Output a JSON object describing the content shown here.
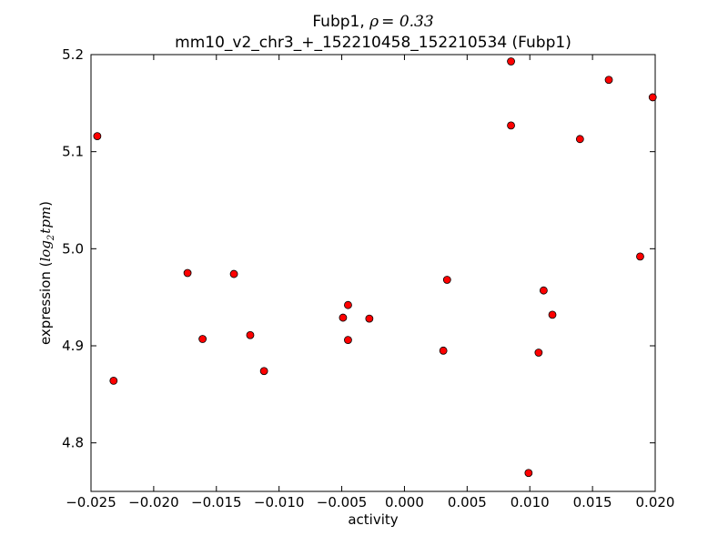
{
  "chart_data": {
    "type": "scatter",
    "title": {
      "gene": "Fubp1",
      "rho_symbol": "ρ",
      "rho_value": "= 0.33",
      "subtitle": "mm10_v2_chr3_+_152210458_152210534 (Fubp1)"
    },
    "xlabel": "activity",
    "ylabel": {
      "prefix": "expression (",
      "log": "log",
      "sub": "2",
      "unit": "tpm",
      "suffix": ")"
    },
    "xlim": [
      -0.025,
      0.02
    ],
    "ylim": [
      4.75,
      5.2
    ],
    "xticks": [
      {
        "value": -0.025,
        "label": "−0.025"
      },
      {
        "value": -0.02,
        "label": "−0.020"
      },
      {
        "value": -0.015,
        "label": "−0.015"
      },
      {
        "value": -0.01,
        "label": "−0.010"
      },
      {
        "value": -0.005,
        "label": "−0.005"
      },
      {
        "value": 0.0,
        "label": "0.000"
      },
      {
        "value": 0.005,
        "label": "0.005"
      },
      {
        "value": 0.01,
        "label": "0.010"
      },
      {
        "value": 0.015,
        "label": "0.015"
      },
      {
        "value": 0.02,
        "label": "0.020"
      }
    ],
    "yticks": [
      {
        "value": 4.8,
        "label": "4.8"
      },
      {
        "value": 4.9,
        "label": "4.9"
      },
      {
        "value": 5.0,
        "label": "5.0"
      },
      {
        "value": 5.1,
        "label": "5.1"
      },
      {
        "value": 5.2,
        "label": "5.2"
      }
    ],
    "grid": false,
    "marker_color": "#ff0000",
    "marker_edge": "#000000",
    "points": [
      {
        "x": -0.0245,
        "y": 5.116
      },
      {
        "x": -0.0232,
        "y": 4.864
      },
      {
        "x": -0.0173,
        "y": 4.975
      },
      {
        "x": -0.0161,
        "y": 4.907
      },
      {
        "x": -0.0136,
        "y": 4.974
      },
      {
        "x": -0.0123,
        "y": 4.911
      },
      {
        "x": -0.0112,
        "y": 4.874
      },
      {
        "x": -0.0049,
        "y": 4.929
      },
      {
        "x": -0.0045,
        "y": 4.942
      },
      {
        "x": -0.0045,
        "y": 4.906
      },
      {
        "x": -0.0028,
        "y": 4.928
      },
      {
        "x": 0.0031,
        "y": 4.895
      },
      {
        "x": 0.0034,
        "y": 4.968
      },
      {
        "x": 0.0085,
        "y": 5.193
      },
      {
        "x": 0.0085,
        "y": 5.127
      },
      {
        "x": 0.0099,
        "y": 4.769
      },
      {
        "x": 0.0107,
        "y": 4.893
      },
      {
        "x": 0.0111,
        "y": 4.957
      },
      {
        "x": 0.0118,
        "y": 4.932
      },
      {
        "x": 0.014,
        "y": 5.113
      },
      {
        "x": 0.0163,
        "y": 5.174
      },
      {
        "x": 0.0188,
        "y": 4.992
      },
      {
        "x": 0.0198,
        "y": 5.156
      }
    ]
  }
}
